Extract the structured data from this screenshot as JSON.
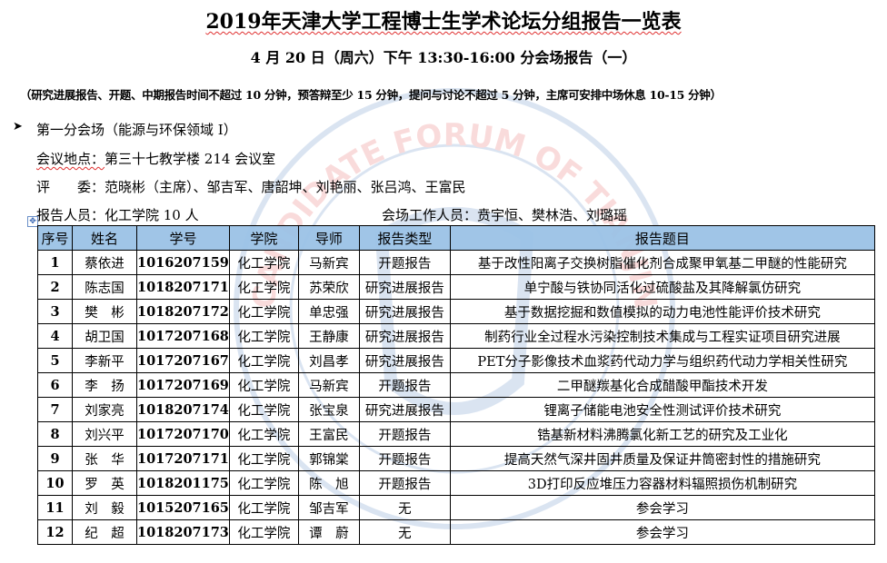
{
  "header": {
    "title": "2019年天津大学工程博士生学术论坛分组报告一览表",
    "subtitle": "4 月 20 日（周六）下午  13:30-16:00  分会场报告（一）",
    "note": "（研究进展报告、开题、中期报告时间不超过 10 分钟，预答辩至少 15 分钟，提问与讨论不超过 5 分钟，主席可安排中场休息 10-15 分钟）"
  },
  "session": {
    "bullet_icon": "arrowhead-bullet",
    "venue": "第一分会场（能源与环保领域 I）",
    "place_label": "会议地点：",
    "place_value": "第三十七教学楼 214 会议室",
    "judges": "评　　委：范晓彬（主席）、邹吉军、唐韶坤、刘艳丽、张吕鸿、王富民",
    "reporters": "报告人员：化工学院 10 人",
    "staff": "会场工作人员：贲宇恒、樊林浩、刘璐瑶"
  },
  "watermark": {
    "text": "CANDIDATE FORUM OF TIANJIN"
  },
  "colors": {
    "header_bg": "#9bc2e6",
    "spellcheck": "#e03030"
  },
  "table": {
    "columns": [
      "序号",
      "姓名",
      "学号",
      "学院",
      "导师",
      "报告类型",
      "报告题目"
    ],
    "rows": [
      [
        "1",
        "蔡依进",
        "1016207159",
        "化工学院",
        "马新宾",
        "开题报告",
        "基于改性阳离子交换树脂催化剂合成聚甲氧基二甲醚的性能研究"
      ],
      [
        "2",
        "陈志国",
        "1018207171",
        "化工学院",
        "苏荣欣",
        "研究进展报告",
        "单宁酸与铁协同活化过硫酸盐及其降解氯仿研究"
      ],
      [
        "3",
        "樊　彬",
        "1018207172",
        "化工学院",
        "单忠强",
        "研究进展报告",
        "基于数据挖掘和数值模拟的动力电池性能评价技术研究"
      ],
      [
        "4",
        "胡卫国",
        "1017207168",
        "化工学院",
        "王静康",
        "研究进展报告",
        "制药行业全过程水污染控制技术集成与工程实证项目研究进展"
      ],
      [
        "5",
        "李新平",
        "1017207167",
        "化工学院",
        "刘昌孝",
        "研究进展报告",
        "PET分子影像技术血浆药代动力学与组织药代动力学相关性研究"
      ],
      [
        "6",
        "李　扬",
        "1017207169",
        "化工学院",
        "马新宾",
        "开题报告",
        "二甲醚羰基化合成醋酸甲酯技术开发"
      ],
      [
        "7",
        "刘家亮",
        "1018207174",
        "化工学院",
        "张宝泉",
        "研究进展报告",
        "锂离子储能电池安全性测试评价技术研究"
      ],
      [
        "8",
        "刘兴平",
        "1017207170",
        "化工学院",
        "王富民",
        "开题报告",
        "锆基新材料沸腾氯化新工艺的研究及工业化"
      ],
      [
        "9",
        "张　华",
        "1017207171",
        "化工学院",
        "郭锦棠",
        "开题报告",
        "提高天然气深井固井质量及保证井筒密封性的措施研究"
      ],
      [
        "10",
        "罗　英",
        "1018201175",
        "化工学院",
        "陈　旭",
        "开题报告",
        "3D打印反应堆压力容器材料辐照损伤机制研究"
      ],
      [
        "11",
        "刘　毅",
        "1015207165",
        "化工学院",
        "邹吉军",
        "无",
        "参会学习"
      ],
      [
        "12",
        "纪　超",
        "1018207173",
        "化工学院",
        "谭　蔚",
        "无",
        "参会学习"
      ]
    ]
  }
}
